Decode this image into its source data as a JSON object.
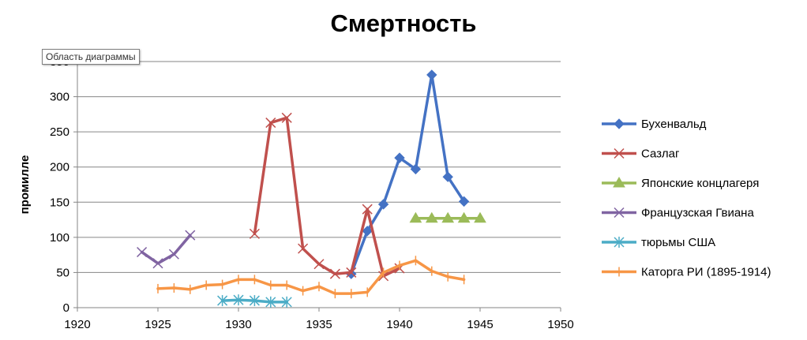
{
  "tooltip": "Область диаграммы",
  "chart_data": {
    "type": "line",
    "title": "Смертность",
    "xlabel": "",
    "ylabel": "промилле",
    "xlim": [
      1920,
      1950
    ],
    "ylim": [
      0,
      350
    ],
    "xticks": [
      1920,
      1925,
      1930,
      1935,
      1940,
      1945,
      1950
    ],
    "yticks": [
      0,
      50,
      100,
      150,
      200,
      250,
      300,
      350
    ],
    "grid": "horizontal",
    "legend_position": "right",
    "series": [
      {
        "name": "Бухенвальд",
        "color": "#4472C4",
        "marker": "diamond",
        "x": [
          1937,
          1938,
          1939,
          1940,
          1941,
          1942,
          1943,
          1944
        ],
        "y": [
          48,
          109,
          147,
          213,
          197,
          331,
          186,
          151
        ]
      },
      {
        "name": "Сазлаг",
        "color": "#C0504D",
        "marker": "x",
        "x": [
          1931,
          1932,
          1933,
          1934,
          1935,
          1936,
          1937,
          1938,
          1939,
          1940
        ],
        "y": [
          105,
          263,
          270,
          84,
          62,
          48,
          50,
          140,
          45,
          56
        ]
      },
      {
        "name": "Японские концлагеря",
        "color": "#9BBB59",
        "marker": "triangle",
        "x": [
          1941,
          1942,
          1943,
          1944,
          1945
        ],
        "y": [
          127,
          127,
          127,
          127,
          127
        ]
      },
      {
        "name": "Французская Гвиана",
        "color": "#8064A2",
        "marker": "x",
        "x": [
          1924,
          1925,
          1926,
          1927
        ],
        "y": [
          79,
          63,
          76,
          103
        ]
      },
      {
        "name": "тюрьмы США",
        "color": "#4BACC6",
        "marker": "asterisk",
        "x": [
          1929,
          1930,
          1931,
          1932,
          1933
        ],
        "y": [
          10,
          11,
          10,
          8,
          8
        ]
      },
      {
        "name": "Каторга РИ (1895-1914)",
        "color": "#F79646",
        "marker": "plus",
        "x": [
          1925,
          1926,
          1927,
          1928,
          1929,
          1930,
          1931,
          1932,
          1933,
          1934,
          1935,
          1936,
          1937,
          1938,
          1939,
          1940,
          1941,
          1942,
          1943,
          1944
        ],
        "y": [
          27,
          28,
          26,
          32,
          33,
          40,
          40,
          32,
          32,
          24,
          30,
          20,
          20,
          22,
          50,
          60,
          67,
          52,
          44,
          40
        ]
      }
    ]
  }
}
